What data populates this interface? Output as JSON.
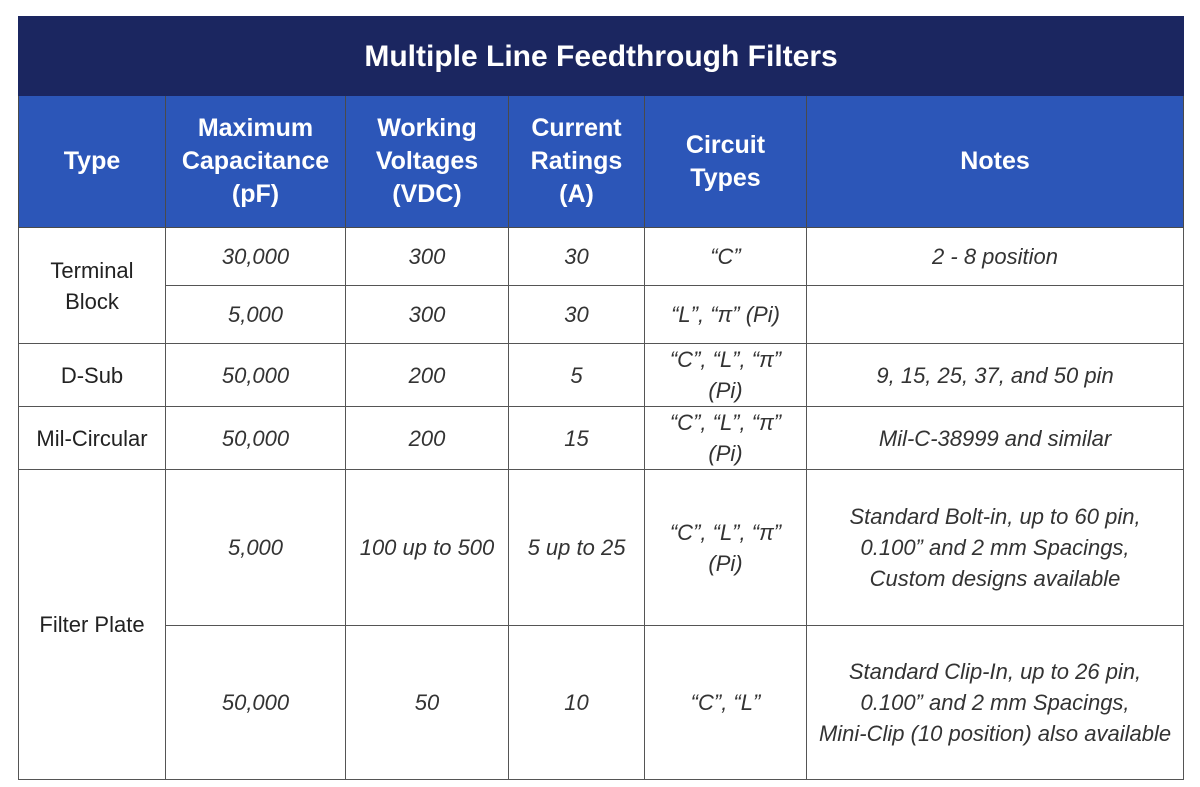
{
  "table": {
    "title": "Multiple Line Feedthrough Filters",
    "header": [
      "Type",
      "Maximum Capacitance (pF)",
      "Working Voltages (VDC)",
      "Current Ratings (A)",
      "Circuit Types",
      "Notes"
    ],
    "groups": [
      {
        "type": [
          "Terminal",
          "Block"
        ],
        "rows": [
          [
            "30,000",
            "300",
            "30",
            "“C”",
            [
              "2 - 8 position"
            ]
          ],
          [
            "5,000",
            "300",
            "30",
            "“L”, “π” (Pi)",
            null
          ]
        ]
      },
      {
        "type": [
          "D-Sub"
        ],
        "rows": [
          [
            "50,000",
            "200",
            "5",
            "“C”, “L”, “π” (Pi)",
            [
              "9, 15, 25, 37, and 50 pin"
            ]
          ]
        ]
      },
      {
        "type": [
          "Mil-Circular"
        ],
        "rows": [
          [
            "50,000",
            "200",
            "15",
            "“C”, “L”, “π” (Pi)",
            [
              "Mil-C-38999 and similar"
            ]
          ]
        ]
      },
      {
        "type": [
          "Filter Plate"
        ],
        "rows": [
          [
            "5,000",
            "100 up to 500",
            "5 up to 25",
            "“C”, “L”, “π” (Pi)",
            [
              "Standard Bolt-in, up to 60 pin,",
              "0.100” and 2 mm Spacings,",
              "Custom designs available"
            ]
          ],
          [
            "50,000",
            "50",
            "10",
            "“C”, “L”",
            [
              "Standard Clip-In, up to 26 pin,",
              "0.100” and 2 mm Spacings,",
              "Mini-Clip (10 position) also available"
            ]
          ]
        ]
      }
    ]
  }
}
